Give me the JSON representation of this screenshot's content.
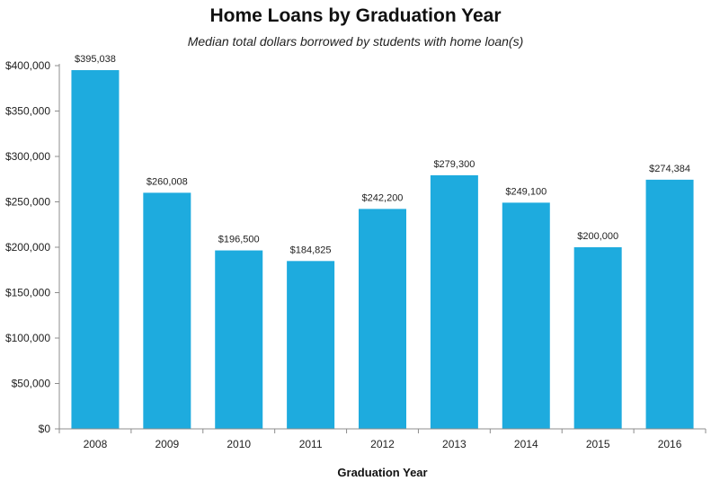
{
  "chart_data": {
    "type": "bar",
    "title": "Home Loans by Graduation Year",
    "subtitle": "Median total dollars borrowed by students with home loan(s)",
    "xlabel": "Graduation Year",
    "ylabel": "",
    "categories": [
      "2008",
      "2009",
      "2010",
      "2011",
      "2012",
      "2013",
      "2014",
      "2015",
      "2016"
    ],
    "values": [
      395038,
      260008,
      196500,
      184825,
      242200,
      279300,
      249100,
      200000,
      274384
    ],
    "data_labels": [
      "$395,038",
      "$260,008",
      "$196,500",
      "$184,825",
      "$242,200",
      "$279,300",
      "$249,100",
      "$200,000",
      "$274,384"
    ],
    "ylim": [
      0,
      400000
    ],
    "yticks": [
      0,
      50000,
      100000,
      150000,
      200000,
      250000,
      300000,
      350000,
      400000
    ],
    "ytick_labels": [
      "$0",
      "$50,000",
      "$100,000",
      "$150,000",
      "$200,000",
      "$250,000",
      "$300,000",
      "$350,000",
      "$400,000"
    ],
    "grid": false,
    "legend": "none",
    "bar_color": "#1EABDE",
    "axis_color": "#8C8C8C"
  }
}
